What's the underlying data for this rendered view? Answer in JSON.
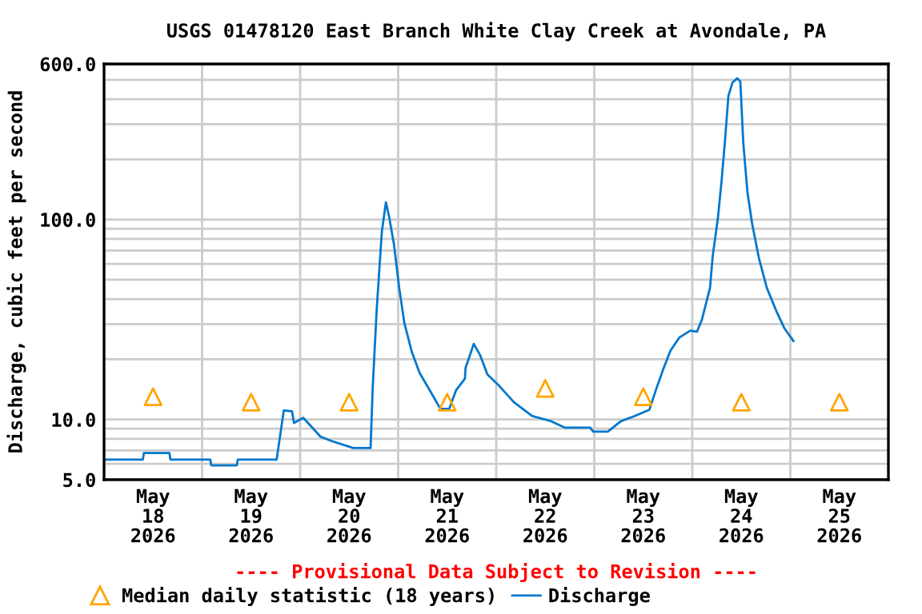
{
  "chart_data": {
    "type": "line",
    "title": "USGS 01478120 East Branch White Clay Creek at Avondale, PA",
    "ylabel": "Discharge, cubic feet per second",
    "log": "y",
    "grid": true,
    "legend": "bottom",
    "xlim": [
      "2026-05-18",
      "2026-05-26"
    ],
    "xticks": [
      {
        "value": "2026-05-18T12:00",
        "label": "May\n18\n2026"
      },
      {
        "value": "2026-05-19T12:00",
        "label": "May\n19\n2026"
      },
      {
        "value": "2026-05-20T12:00",
        "label": "May\n20\n2026"
      },
      {
        "value": "2026-05-21T12:00",
        "label": "May\n21\n2026"
      },
      {
        "value": "2026-05-22T12:00",
        "label": "May\n22\n2026"
      },
      {
        "value": "2026-05-23T12:00",
        "label": "May\n23\n2026"
      },
      {
        "value": "2026-05-24T12:00",
        "label": "May\n24\n2026"
      },
      {
        "value": "2026-05-25T12:00",
        "label": "May\n25\n2026"
      },
      {
        "value": "2026-05-19",
        "label": null
      },
      {
        "value": "2026-05-20",
        "label": null
      },
      {
        "value": "2026-05-21",
        "label": null
      },
      {
        "value": "2026-05-22",
        "label": null
      },
      {
        "value": "2026-05-23",
        "label": null
      },
      {
        "value": "2026-05-24",
        "label": null
      },
      {
        "value": "2026-05-25",
        "label": null
      }
    ],
    "ylim": [
      5,
      600
    ],
    "yticks": [
      {
        "value": 5,
        "label": "5.0"
      },
      {
        "value": 10,
        "label": "10.0"
      },
      {
        "value": 100,
        "label": "100.0"
      },
      {
        "value": 600,
        "label": "600.0"
      },
      {
        "value": 6,
        "label": null
      },
      {
        "value": 7,
        "label": null
      },
      {
        "value": 8,
        "label": null
      },
      {
        "value": 9,
        "label": null
      },
      {
        "value": 20,
        "label": null
      },
      {
        "value": 30,
        "label": null
      },
      {
        "value": 40,
        "label": null
      },
      {
        "value": 50,
        "label": null
      },
      {
        "value": 60,
        "label": null
      },
      {
        "value": 70,
        "label": null
      },
      {
        "value": 80,
        "label": null
      },
      {
        "value": 90,
        "label": null
      },
      {
        "value": 200,
        "label": null
      },
      {
        "value": 300,
        "label": null
      },
      {
        "value": 400,
        "label": null
      },
      {
        "value": 500,
        "label": null
      }
    ],
    "annotations": [
      "---- Provisional Data Subject to Revision ----"
    ],
    "series": [
      {
        "name": "Median daily statistic (18 years)",
        "type": "scatter",
        "marker": "triangle",
        "color": "#ffa500",
        "x": [
          "2026-05-18T12:00",
          "2026-05-19T12:00",
          "2026-05-20T12:00",
          "2026-05-21T12:00",
          "2026-05-22T12:00",
          "2026-05-23T12:00",
          "2026-05-24T12:00",
          "2026-05-25T12:00"
        ],
        "values": [
          13.0,
          12.2,
          12.2,
          12.2,
          14.3,
          13.0,
          12.2,
          12.2
        ]
      },
      {
        "name": "Discharge",
        "color": "#0077cc",
        "x": [
          "2026-05-18T00:00",
          "2026-05-18T09:30",
          "2026-05-18T09:45",
          "2026-05-18T16:00",
          "2026-05-18T16:15",
          "2026-05-19T02:00",
          "2026-05-19T02:15",
          "2026-05-19T08:30",
          "2026-05-19T08:45",
          "2026-05-19T18:15",
          "2026-05-19T20:00",
          "2026-05-19T22:00",
          "2026-05-19T22:30",
          "2026-05-20T00:45",
          "2026-05-20T03:00",
          "2026-05-20T05:00",
          "2026-05-20T07:45",
          "2026-05-20T13:00",
          "2026-05-20T17:15",
          "2026-05-20T17:45",
          "2026-05-20T18:45",
          "2026-05-20T20:00",
          "2026-05-20T21:00",
          "2026-05-20T21:50",
          "2026-05-20T23:00",
          "2026-05-21T00:15",
          "2026-05-21T01:30",
          "2026-05-21T03:20",
          "2026-05-21T05:15",
          "2026-05-21T08:00",
          "2026-05-21T10:20",
          "2026-05-21T12:30",
          "2026-05-21T14:10",
          "2026-05-21T16:20",
          "2026-05-21T16:30",
          "2026-05-21T18:30",
          "2026-05-21T20:00",
          "2026-05-21T21:50",
          "2026-05-22T00:30",
          "2026-05-22T04:20",
          "2026-05-22T08:50",
          "2026-05-22T13:30",
          "2026-05-22T16:50",
          "2026-05-22T23:00",
          "2026-05-22T23:45",
          "2026-05-23T03:20",
          "2026-05-23T06:30",
          "2026-05-23T09:50",
          "2026-05-23T13:30",
          "2026-05-23T15:10",
          "2026-05-23T17:00",
          "2026-05-23T18:40",
          "2026-05-23T20:50",
          "2026-05-23T23:30",
          "2026-05-24T01:10",
          "2026-05-24T02:20",
          "2026-05-24T04:20",
          "2026-05-24T05:00",
          "2026-05-24T06:15",
          "2026-05-24T07:10",
          "2026-05-24T08:00",
          "2026-05-24T08:50",
          "2026-05-24T09:50",
          "2026-05-24T11:00",
          "2026-05-24T11:45",
          "2026-05-24T12:30",
          "2026-05-24T13:30",
          "2026-05-24T14:40",
          "2026-05-24T16:20",
          "2026-05-24T18:15",
          "2026-05-24T20:40",
          "2026-05-24T22:30",
          "2026-05-25T00:45"
        ],
        "values": [
          6.3,
          6.3,
          6.8,
          6.8,
          6.3,
          6.3,
          5.9,
          5.9,
          6.3,
          6.3,
          11.1,
          11.0,
          9.6,
          10.2,
          9.1,
          8.2,
          7.8,
          7.2,
          7.2,
          14.2,
          35.6,
          86.7,
          122,
          102,
          74.5,
          45.5,
          30.5,
          21.8,
          17.1,
          13.7,
          11.3,
          11.3,
          14.0,
          16.0,
          18.1,
          23.9,
          21.1,
          16.8,
          14.9,
          12.2,
          10.4,
          9.8,
          9.1,
          9.1,
          8.7,
          8.7,
          9.8,
          10.4,
          11.2,
          14.2,
          18.1,
          22.1,
          25.7,
          27.8,
          27.5,
          31.5,
          45.5,
          65.8,
          101,
          156,
          247,
          415,
          484,
          509,
          490,
          239,
          137,
          95,
          63.8,
          45.5,
          34.5,
          28.7,
          24.7
        ]
      }
    ]
  }
}
